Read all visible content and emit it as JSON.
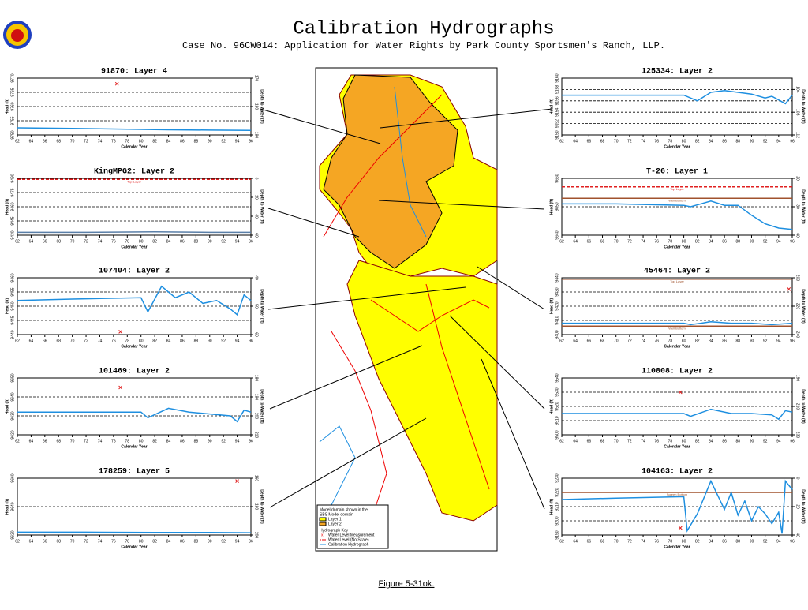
{
  "header": {
    "title": "Calibration Hydrographs",
    "subtitle": "Case No. 96CW014: Application for Water Rights by Park County Sportsmen's Ranch, LLP."
  },
  "caption": "Figure 5-31ok.",
  "map": {
    "legend": [
      "Model domain shown in the",
      "SBS Model domain",
      "Layer 1",
      "Layer 2"
    ],
    "key_title": "Hydrograph Key",
    "key": [
      "Water Level Measurement",
      "Water Level (No Scale)",
      "Calibration Hydrograph"
    ]
  },
  "chart_data": [
    {
      "type": "line",
      "title": "91870: Layer 4",
      "xlabel": "Calendar Year",
      "ylabel": "Head (ft)",
      "y2label": "Depth to Water (ft)",
      "xlim": [
        62,
        96
      ],
      "xticks": [
        62,
        64,
        66,
        68,
        70,
        72,
        74,
        76,
        78,
        80,
        82,
        84,
        86,
        88,
        90,
        92,
        94,
        96
      ],
      "ylim": [
        9750,
        9770
      ],
      "yticks": [
        9750,
        9755,
        9760,
        9765,
        9770
      ],
      "y2lim": [
        190,
        170
      ],
      "y2ticks": [
        190,
        180,
        170
      ],
      "series": [
        {
          "color": "#1e8fe0",
          "x": [
            62,
            70,
            78,
            84,
            90,
            96
          ],
          "values": [
            9752.5,
            9752.3,
            9752.0,
            9751.8,
            9751.7,
            9751.6
          ]
        },
        {
          "color": "#e02020",
          "marker": "x",
          "x": [
            76.5
          ],
          "values": [
            9768
          ]
        }
      ],
      "reference_lines": []
    },
    {
      "type": "line",
      "title": "KingMPG2: Layer 2",
      "xlabel": "Calendar Year",
      "ylabel": "Head (ft)",
      "y2label": "Depth to Water (ft)",
      "xlim": [
        62,
        96
      ],
      "xticks": [
        62,
        64,
        66,
        68,
        70,
        72,
        74,
        76,
        78,
        80,
        82,
        84,
        86,
        88,
        90,
        92,
        94,
        96
      ],
      "ylim": [
        9430,
        9490
      ],
      "yticks": [
        9430,
        9445,
        9460,
        9475,
        9490
      ],
      "y2lim": [
        60,
        0
      ],
      "y2ticks": [
        60,
        40,
        20,
        0
      ],
      "series": [
        {
          "color": "#5a7fa8",
          "x": [
            62,
            72,
            82,
            90,
            96
          ],
          "values": [
            9433,
            9433,
            9433.5,
            9433,
            9433
          ]
        }
      ],
      "reference_lines": [
        {
          "label": "Top Layer",
          "value": 9489,
          "color": "#e02020"
        }
      ]
    },
    {
      "type": "line",
      "title": "107404: Layer 2",
      "xlabel": "Calendar Year",
      "ylabel": "Head (ft)",
      "y2label": "Depth to Water (ft)",
      "xlim": [
        62,
        96
      ],
      "xticks": [
        62,
        64,
        66,
        68,
        70,
        72,
        74,
        76,
        78,
        80,
        82,
        84,
        86,
        88,
        90,
        92,
        94,
        96
      ],
      "ylim": [
        9440,
        9460
      ],
      "yticks": [
        9440,
        9445,
        9450,
        9455,
        9460
      ],
      "y2lim": [
        60,
        40
      ],
      "y2ticks": [
        60,
        50,
        40
      ],
      "series": [
        {
          "color": "#1e8fe0",
          "x": [
            62,
            70,
            80,
            81,
            83,
            85,
            87,
            89,
            91,
            93,
            94,
            95,
            96
          ],
          "values": [
            9452,
            9452.5,
            9453,
            9448,
            9457,
            9453,
            9455,
            9451,
            9452,
            9449,
            9447,
            9454,
            9452
          ]
        },
        {
          "color": "#e02020",
          "marker": "x",
          "x": [
            77
          ],
          "values": [
            9441
          ]
        }
      ],
      "reference_lines": []
    },
    {
      "type": "line",
      "title": "101469: Layer 2",
      "xlabel": "Calendar Year",
      "ylabel": "Head (ft)",
      "y2label": "Depth to Water (ft)",
      "xlim": [
        62,
        96
      ],
      "xticks": [
        62,
        64,
        66,
        68,
        70,
        72,
        74,
        76,
        78,
        80,
        82,
        84,
        86,
        88,
        90,
        92,
        94,
        96
      ],
      "ylim": [
        9620,
        9650
      ],
      "yticks": [
        9620,
        9630,
        9640,
        9650
      ],
      "y2lim": [
        210,
        180
      ],
      "y2ticks": [
        210,
        200,
        190,
        180
      ],
      "series": [
        {
          "color": "#1e8fe0",
          "x": [
            62,
            70,
            80,
            81,
            84,
            87,
            90,
            93,
            94,
            95,
            96
          ],
          "values": [
            9632,
            9632,
            9632,
            9629,
            9634,
            9632,
            9631,
            9630,
            9627,
            9633,
            9632
          ]
        },
        {
          "color": "#e02020",
          "marker": "x",
          "x": [
            77
          ],
          "values": [
            9645
          ]
        }
      ],
      "reference_lines": []
    },
    {
      "type": "line",
      "title": "178259: Layer 5",
      "xlabel": "Calendar Year",
      "ylabel": "Head (ft)",
      "y2label": "Depth to Water (ft)",
      "xlim": [
        62,
        96
      ],
      "xticks": [
        62,
        64,
        66,
        68,
        70,
        72,
        74,
        76,
        78,
        80,
        82,
        84,
        86,
        88,
        90,
        92,
        94,
        96
      ],
      "ylim": [
        9620,
        9660
      ],
      "yticks": [
        9620,
        9640,
        9660
      ],
      "y2lim": [
        200,
        160
      ],
      "y2ticks": [
        200,
        180,
        160
      ],
      "series": [
        {
          "color": "#1e8fe0",
          "x": [
            62,
            72,
            82,
            90,
            96
          ],
          "values": [
            9622,
            9622,
            9621.8,
            9621.8,
            9621.6
          ]
        },
        {
          "color": "#e02020",
          "marker": "x",
          "x": [
            94
          ],
          "values": [
            9658
          ]
        }
      ],
      "reference_lines": []
    },
    {
      "type": "line",
      "title": "125334: Layer 2",
      "xlabel": "Calendar Year",
      "ylabel": "Head (ft)",
      "y2label": "Depth to Water (ft)",
      "xlim": [
        62,
        96
      ],
      "xticks": [
        62,
        64,
        66,
        68,
        70,
        72,
        74,
        76,
        78,
        80,
        82,
        84,
        86,
        88,
        90,
        92,
        94,
        96
      ],
      "ylim": [
        9150,
        9160
      ],
      "yticks": [
        9150,
        9152,
        9154,
        9156,
        9158,
        9160
      ],
      "y2lim": [
        112,
        102
      ],
      "y2ticks": [
        112,
        108,
        104
      ],
      "series": [
        {
          "color": "#1e8fe0",
          "x": [
            62,
            72,
            80,
            82,
            84,
            86,
            88,
            90,
            92,
            93,
            95,
            96
          ],
          "values": [
            9157,
            9157,
            9157,
            9156,
            9157.5,
            9157.8,
            9157.5,
            9157.2,
            9156.5,
            9156.8,
            9155.5,
            9157
          ]
        }
      ],
      "reference_lines": []
    },
    {
      "type": "line",
      "title": "T-26: Layer 1",
      "xlabel": "Calendar Year",
      "ylabel": "Head (ft)",
      "y2label": "Depth to Water (ft)",
      "xlim": [
        62,
        96
      ],
      "xticks": [
        62,
        64,
        66,
        68,
        70,
        72,
        74,
        76,
        78,
        80,
        82,
        84,
        86,
        88,
        90,
        92,
        94,
        96
      ],
      "ylim": [
        9640,
        9660
      ],
      "yticks": [
        9640,
        9650,
        9660
      ],
      "y2lim": [
        40,
        20
      ],
      "y2ticks": [
        40,
        30,
        20
      ],
      "series": [
        {
          "color": "#1e8fe0",
          "x": [
            62,
            70,
            80,
            81,
            84,
            86,
            88,
            90,
            92,
            94,
            96
          ],
          "values": [
            9651,
            9651,
            9650.5,
            9650,
            9652,
            9650.5,
            9650.5,
            9647,
            9644,
            9642.5,
            9642
          ]
        }
      ],
      "reference_lines": [
        {
          "label": "Top Layer",
          "value": 9657,
          "color": "#e02020"
        },
        {
          "label": "Well Bottom",
          "value": 9653,
          "color": "#a0522d"
        }
      ]
    },
    {
      "type": "line",
      "title": "45464: Layer 2",
      "xlabel": "Calendar Year",
      "ylabel": "Head (ft)",
      "y2label": "Depth to Water (ft)",
      "xlim": [
        62,
        96
      ],
      "xticks": [
        62,
        64,
        66,
        68,
        70,
        72,
        74,
        76,
        78,
        80,
        82,
        84,
        86,
        88,
        90,
        92,
        94,
        96
      ],
      "ylim": [
        9400,
        9440
      ],
      "yticks": [
        9400,
        9410,
        9420,
        9430,
        9440
      ],
      "y2lim": [
        240,
        200
      ],
      "y2ticks": [
        240,
        220,
        200
      ],
      "series": [
        {
          "color": "#1e8fe0",
          "x": [
            62,
            72,
            80,
            81,
            84,
            87,
            90,
            93,
            96
          ],
          "values": [
            9408,
            9408,
            9408,
            9407,
            9409,
            9408,
            9408,
            9407,
            9408
          ]
        },
        {
          "color": "#e02020",
          "marker": "x",
          "x": [
            95.5
          ],
          "values": [
            9432
          ]
        }
      ],
      "reference_lines": [
        {
          "label": "Top Layer",
          "value": 9439,
          "color": "#a0522d"
        },
        {
          "label": "Well Bottom",
          "value": 9406,
          "color": "#a0522d"
        }
      ]
    },
    {
      "type": "line",
      "title": "110808: Layer 2",
      "xlabel": "Calendar Year",
      "ylabel": "Head (ft)",
      "y2label": "Depth to Water (ft)",
      "xlim": [
        62,
        96
      ],
      "xticks": [
        62,
        64,
        66,
        68,
        70,
        72,
        74,
        76,
        78,
        80,
        82,
        84,
        86,
        88,
        90,
        92,
        94,
        96
      ],
      "ylim": [
        9500,
        9540
      ],
      "yticks": [
        9500,
        9510,
        9520,
        9530,
        9540
      ],
      "y2lim": [
        230,
        190
      ],
      "y2ticks": [
        230,
        210,
        190
      ],
      "series": [
        {
          "color": "#1e8fe0",
          "x": [
            62,
            72,
            80,
            81,
            84,
            87,
            90,
            93,
            94,
            95,
            96
          ],
          "values": [
            9515,
            9515,
            9515,
            9513,
            9518,
            9515,
            9515,
            9514,
            9511,
            9517,
            9516
          ]
        },
        {
          "color": "#e02020",
          "marker": "x",
          "x": [
            79.5
          ],
          "values": [
            9530
          ]
        }
      ],
      "reference_lines": []
    },
    {
      "type": "line",
      "title": "104163: Layer 2",
      "xlabel": "Calendar Year",
      "ylabel": "Head (ft)",
      "y2label": "Depth to Water (ft)",
      "xlim": [
        62,
        96
      ],
      "xticks": [
        62,
        64,
        66,
        68,
        70,
        72,
        74,
        76,
        78,
        80,
        82,
        84,
        86,
        88,
        90,
        92,
        94,
        96
      ],
      "ylim": [
        9190,
        9230
      ],
      "yticks": [
        9190,
        9200,
        9210,
        9220,
        9230
      ],
      "y2lim": [
        40,
        0
      ],
      "y2ticks": [
        40,
        20,
        0
      ],
      "series": [
        {
          "color": "#1e8fe0",
          "x": [
            62,
            70,
            80,
            80.5,
            82,
            84,
            86,
            87,
            88,
            89,
            90,
            91,
            92,
            93,
            94,
            94.5,
            95,
            96
          ],
          "values": [
            9215,
            9216,
            9217,
            9193,
            9205,
            9228,
            9208,
            9220,
            9204,
            9214,
            9200,
            9210,
            9205,
            9198,
            9206,
            9191,
            9228,
            9222
          ]
        },
        {
          "color": "#e02020",
          "marker": "x",
          "x": [
            79.5
          ],
          "values": [
            9195
          ]
        }
      ],
      "reference_lines": [
        {
          "label": "Screen Bottom",
          "value": 9220,
          "color": "#a0522d"
        }
      ]
    }
  ]
}
